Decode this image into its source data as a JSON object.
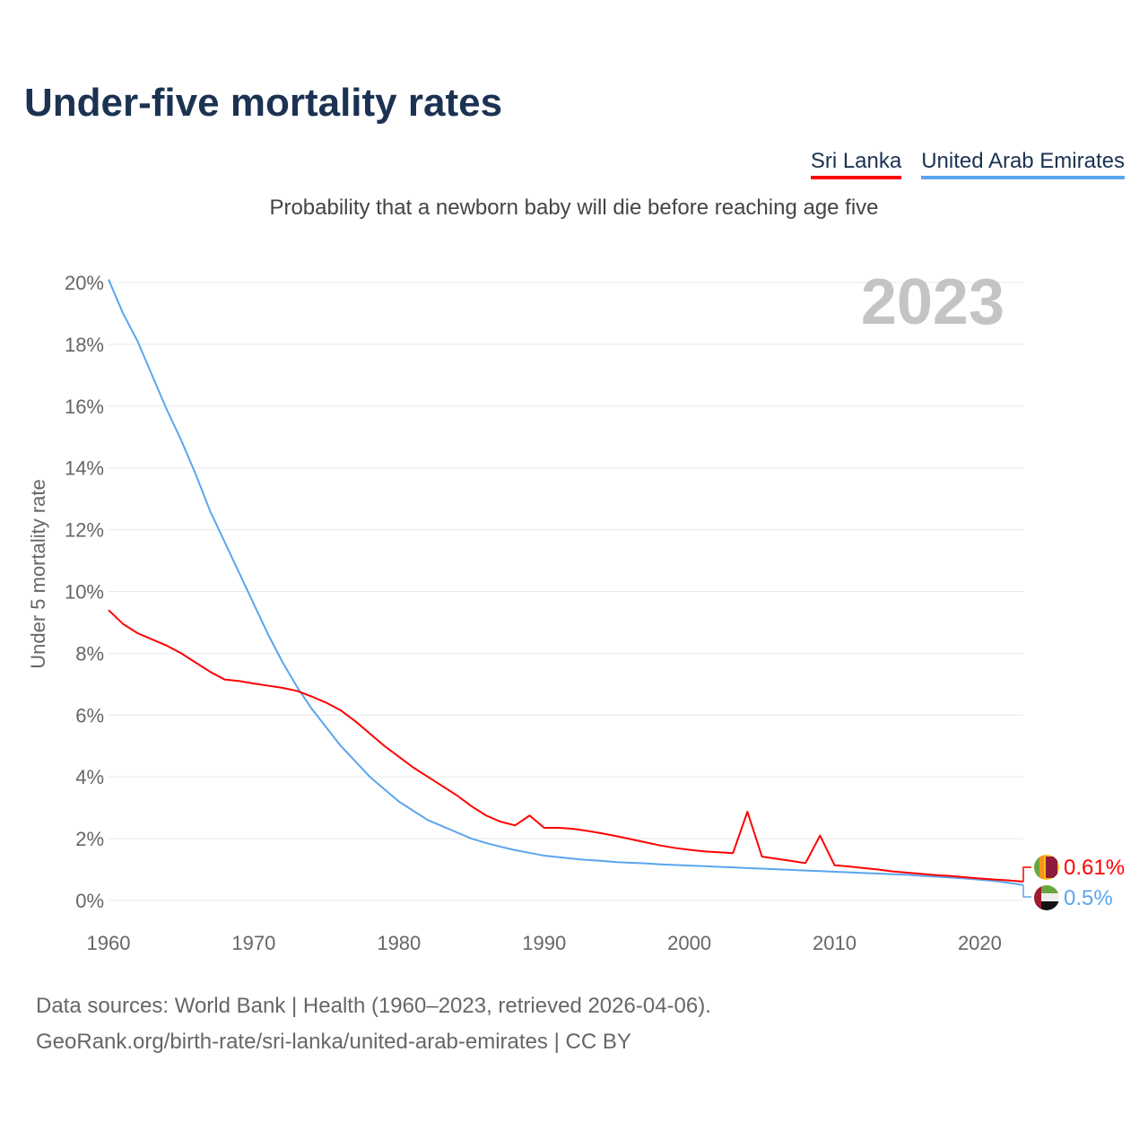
{
  "title": "Under-five mortality rates",
  "subtitle": "Probability that a newborn baby will die before reaching age five",
  "legend": [
    {
      "label": "Sri Lanka",
      "color": "#ff0000"
    },
    {
      "label": "United Arab Emirates",
      "color": "#5aa5ee"
    }
  ],
  "year_label": "2023",
  "end_labels": {
    "sri_lanka": "0.61%",
    "uae": "0.5%"
  },
  "sources": {
    "line1": "Data sources: World Bank | Health (1960–2023, retrieved 2026-04-06).",
    "line2": "GeoRank.org/birth-rate/sri-lanka/united-arab-emirates | CC BY"
  },
  "chart_data": {
    "type": "line",
    "title": "Under-five mortality rates",
    "xlabel": "",
    "ylabel": "Under 5 mortality rate",
    "xlim": [
      1960,
      2023
    ],
    "ylim": [
      0,
      20
    ],
    "xticks": [
      1960,
      1970,
      1980,
      1990,
      2000,
      2010,
      2020
    ],
    "yticks": [
      0,
      2,
      4,
      6,
      8,
      10,
      12,
      14,
      16,
      18,
      20
    ],
    "ytick_labels": [
      "0%",
      "2%",
      "4%",
      "6%",
      "8%",
      "10%",
      "12%",
      "14%",
      "16%",
      "18%",
      "20%"
    ],
    "grid": true,
    "legend_position": "top-right",
    "x_start": 1960,
    "series": [
      {
        "name": "Sri Lanka",
        "color": "#ff0000",
        "values": [
          9.4,
          8.95,
          8.65,
          8.45,
          8.25,
          8.0,
          7.7,
          7.4,
          7.15,
          7.1,
          7.02,
          6.95,
          6.88,
          6.78,
          6.6,
          6.4,
          6.15,
          5.8,
          5.4,
          5.0,
          4.65,
          4.3,
          4.0,
          3.7,
          3.4,
          3.05,
          2.75,
          2.55,
          2.43,
          2.75,
          2.35,
          2.35,
          2.32,
          2.25,
          2.17,
          2.08,
          1.98,
          1.88,
          1.78,
          1.7,
          1.64,
          1.59,
          1.56,
          1.53,
          2.87,
          1.42,
          1.35,
          1.28,
          1.21,
          2.1,
          1.14,
          1.1,
          1.05,
          1.0,
          0.94,
          0.9,
          0.86,
          0.82,
          0.79,
          0.75,
          0.71,
          0.68,
          0.65,
          0.61
        ]
      },
      {
        "name": "United Arab Emirates",
        "color": "#5aa5ee",
        "values": [
          20.1,
          19.0,
          18.1,
          17.0,
          15.9,
          14.9,
          13.8,
          12.6,
          11.6,
          10.6,
          9.6,
          8.6,
          7.7,
          6.9,
          6.2,
          5.6,
          5.0,
          4.5,
          4.0,
          3.6,
          3.2,
          2.9,
          2.6,
          2.4,
          2.2,
          2.0,
          1.86,
          1.74,
          1.63,
          1.54,
          1.45,
          1.4,
          1.35,
          1.31,
          1.28,
          1.24,
          1.22,
          1.2,
          1.17,
          1.15,
          1.13,
          1.11,
          1.09,
          1.07,
          1.05,
          1.03,
          1.01,
          0.99,
          0.97,
          0.95,
          0.93,
          0.91,
          0.89,
          0.87,
          0.85,
          0.83,
          0.8,
          0.77,
          0.74,
          0.71,
          0.67,
          0.63,
          0.57,
          0.5
        ]
      }
    ]
  }
}
